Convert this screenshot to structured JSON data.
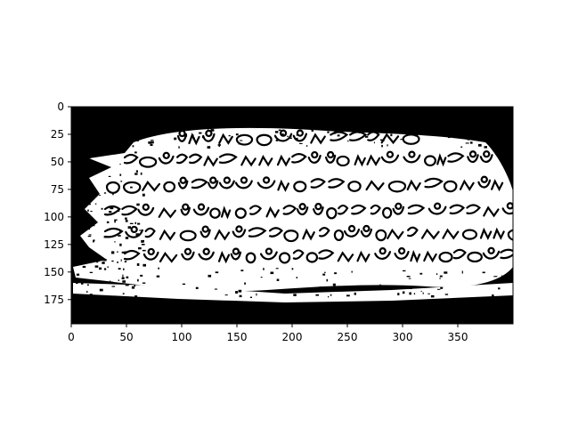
{
  "chart_data": {
    "type": "image",
    "description_free": true,
    "x_ticks": [
      0,
      50,
      100,
      150,
      200,
      250,
      300,
      350
    ],
    "y_ticks": [
      0,
      25,
      50,
      75,
      100,
      125,
      150,
      175
    ],
    "xlim": [
      0,
      400
    ],
    "ylim": [
      197,
      0
    ],
    "grid": false,
    "colors": {
      "foreground": "#ffffff",
      "background": "#000000"
    }
  },
  "labels": {
    "x_ticks": [
      "0",
      "50",
      "100",
      "150",
      "200",
      "250",
      "300",
      "350"
    ],
    "y_ticks": [
      "0",
      "25",
      "50",
      "75",
      "100",
      "125",
      "150",
      "175"
    ]
  }
}
